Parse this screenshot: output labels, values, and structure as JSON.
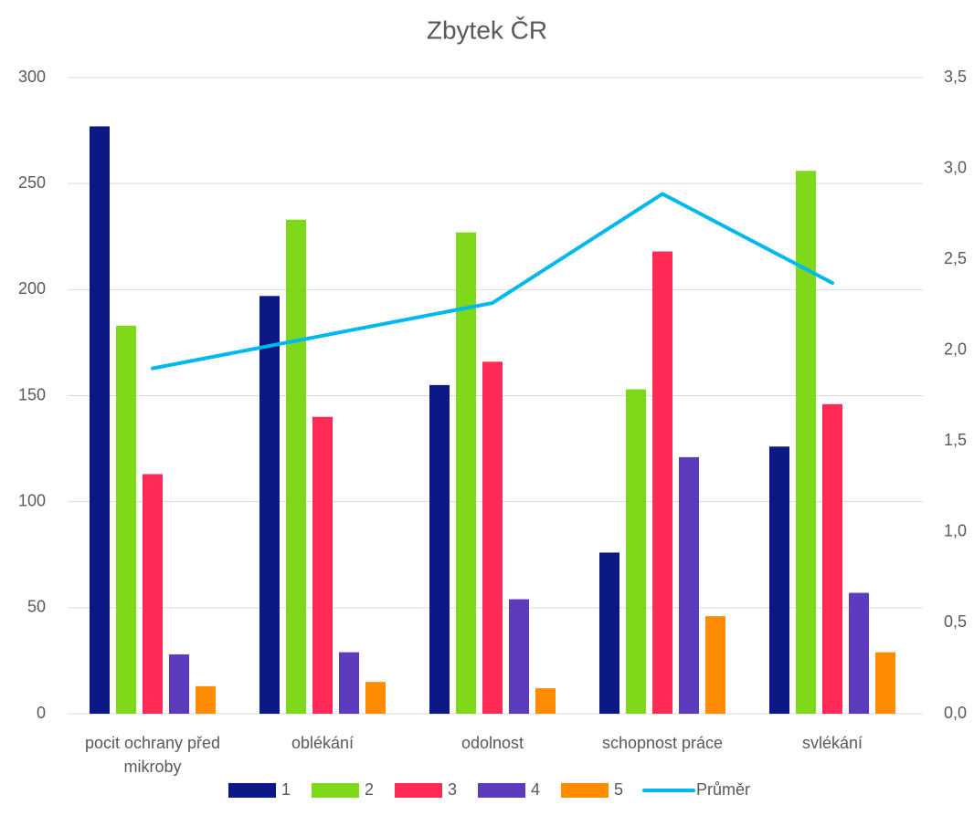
{
  "chart_data": {
    "type": "bar",
    "title": "Zbytek ČR",
    "categories": [
      "pocit ochrany před mikroby",
      "oblékání",
      "odolnost",
      "schopnost práce",
      "svlékání"
    ],
    "series": [
      {
        "name": "1",
        "color": "#0c1985",
        "values": [
          277,
          197,
          155,
          76,
          126
        ]
      },
      {
        "name": "2",
        "color": "#80d81a",
        "values": [
          183,
          233,
          227,
          153,
          256
        ]
      },
      {
        "name": "3",
        "color": "#ff2a55",
        "values": [
          113,
          140,
          166,
          218,
          146
        ]
      },
      {
        "name": "4",
        "color": "#5c3cbd",
        "values": [
          28,
          29,
          54,
          121,
          57
        ]
      },
      {
        "name": "5",
        "color": "#ff8c00",
        "values": [
          13,
          15,
          12,
          46,
          29
        ]
      },
      {
        "name": "Průměr",
        "color": "#00b8f0",
        "type": "line",
        "axis": "y2",
        "values": [
          1.9,
          2.08,
          2.26,
          2.86,
          2.37
        ]
      }
    ],
    "ylim": [
      0,
      300
    ],
    "yticks": [
      0,
      50,
      100,
      150,
      200,
      250,
      300
    ],
    "y2lim": [
      0,
      3.5
    ],
    "y2ticks": [
      {
        "value": 0,
        "label": "0,0"
      },
      {
        "value": 0.5,
        "label": "0,5"
      },
      {
        "value": 1,
        "label": "1,0"
      },
      {
        "value": 1.5,
        "label": "1,5"
      },
      {
        "value": 2,
        "label": "2,0"
      },
      {
        "value": 2.5,
        "label": "2,5"
      },
      {
        "value": 3,
        "label": "3,0"
      },
      {
        "value": 3.5,
        "label": "3,5"
      }
    ],
    "grid": true,
    "legend": "bottom"
  }
}
